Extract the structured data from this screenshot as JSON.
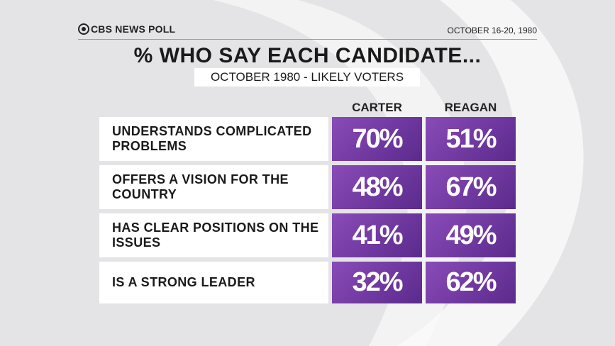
{
  "header": {
    "brand": "CBS NEWS POLL",
    "date": "OCTOBER 16-20, 1980",
    "title": "% WHO SAY EACH CANDIDATE...",
    "subtitle": "OCTOBER 1980 - LIKELY VOTERS"
  },
  "table": {
    "columns": [
      "CARTER",
      "REAGAN"
    ],
    "rows": [
      {
        "label": "UNDERSTANDS COMPLICATED PROBLEMS",
        "cells": [
          "70%",
          "51%"
        ]
      },
      {
        "label": "OFFERS A VISION FOR THE COUNTRY",
        "cells": [
          "48%",
          "67%"
        ]
      },
      {
        "label": "HAS CLEAR POSITIONS ON THE ISSUES",
        "cells": [
          "41%",
          "49%"
        ]
      },
      {
        "label": "IS A STRONG LEADER",
        "cells": [
          "32%",
          "62%"
        ]
      }
    ]
  }
}
